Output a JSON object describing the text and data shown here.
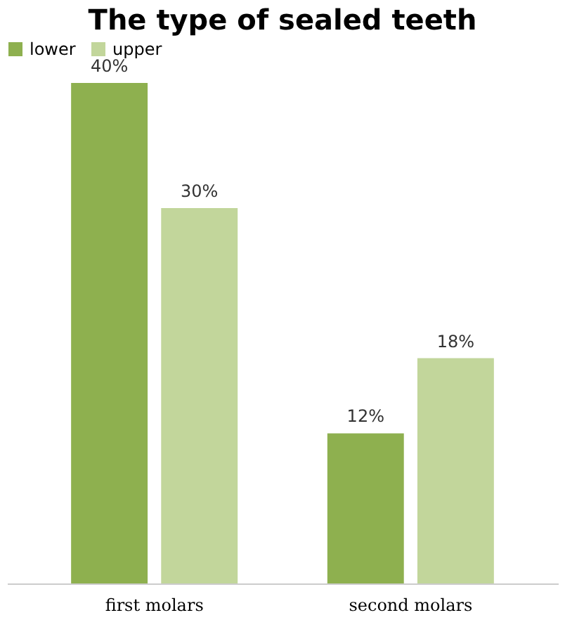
{
  "chart_data": {
    "type": "bar",
    "title": "The type of sealed teeth",
    "categories": [
      "first molars",
      "second molars"
    ],
    "series": [
      {
        "name": "lower",
        "color": "#8eb04f",
        "values": [
          40,
          12
        ],
        "value_labels": [
          "40%",
          "12%"
        ]
      },
      {
        "name": "upper",
        "color": "#c2d69b",
        "values": [
          30,
          18
        ],
        "value_labels": [
          "30%",
          "18%"
        ]
      }
    ],
    "legend": "top"
  }
}
